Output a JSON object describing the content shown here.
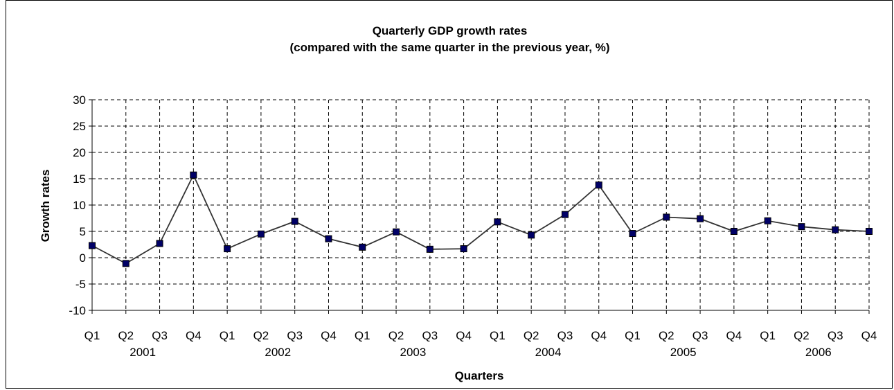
{
  "chart_data": {
    "type": "line",
    "title": "Quarterly GDP growth rates",
    "subtitle": "(compared with the same quarter in the previous year, %)",
    "xlabel": "Quarters",
    "ylabel": "Growth rates",
    "ylim": [
      -10,
      30
    ],
    "yticks": [
      30,
      25,
      20,
      15,
      10,
      5,
      0,
      -5,
      -10
    ],
    "grid": true,
    "categories": [
      "Q1",
      "Q2",
      "Q3",
      "Q4",
      "Q1",
      "Q2",
      "Q3",
      "Q4",
      "Q1",
      "Q2",
      "Q3",
      "Q4",
      "Q1",
      "Q2",
      "Q3",
      "Q4",
      "Q1",
      "Q2",
      "Q3",
      "Q4",
      "Q1",
      "Q2",
      "Q3",
      "Q4"
    ],
    "years": [
      "2001",
      "2002",
      "2003",
      "2004",
      "2005",
      "2006"
    ],
    "series": [
      {
        "values": [
          2.3,
          -1.1,
          2.7,
          15.7,
          1.7,
          4.5,
          6.9,
          3.6,
          2.0,
          4.9,
          1.6,
          1.7,
          6.8,
          4.3,
          8.2,
          13.8,
          4.6,
          7.7,
          7.4,
          5.0,
          7.0,
          5.9,
          5.3,
          5.0
        ]
      }
    ],
    "colors": {
      "line": "#333333",
      "marker": "#000066",
      "grid": "#000000"
    }
  }
}
